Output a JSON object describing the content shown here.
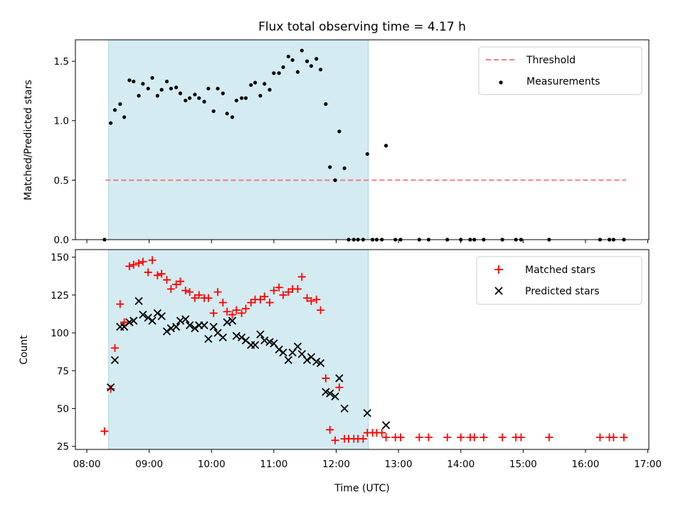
{
  "chart_data": {
    "title": "Flux total observing time = 4.17 h",
    "xlabel": "Time (UTC)",
    "x_ticks": [
      "08:00",
      "09:00",
      "10:00",
      "11:00",
      "12:00",
      "13:00",
      "14:00",
      "15:00",
      "16:00",
      "17:00"
    ],
    "xlim": [
      "07:49",
      "17:01"
    ],
    "observing_window": {
      "start": "08:21",
      "end": "12:31",
      "color": "#d4ebf1"
    },
    "panels": [
      {
        "type": "scatter",
        "ylabel": "Matched/Predicted stars",
        "ylim": [
          0,
          1.68
        ],
        "y_ticks": [
          "0.0",
          "0.5",
          "1.0",
          "1.5"
        ],
        "threshold": {
          "name": "Threshold",
          "value": 0.5,
          "x_start": "08:18",
          "x_end": "16:39",
          "color": "#f08080"
        },
        "legend": [
          "Threshold",
          "Measurements"
        ],
        "legend_position": "top-right",
        "series": [
          {
            "name": "Measurements",
            "color": "#000000",
            "points": [
              [
                "08:17",
                0.0
              ],
              [
                "08:23",
                0.98
              ],
              [
                "08:27",
                1.09
              ],
              [
                "08:32",
                1.14
              ],
              [
                "08:36",
                1.03
              ],
              [
                "08:41",
                1.34
              ],
              [
                "08:45",
                1.33
              ],
              [
                "08:50",
                1.21
              ],
              [
                "08:54",
                1.31
              ],
              [
                "08:59",
                1.27
              ],
              [
                "09:03",
                1.36
              ],
              [
                "09:08",
                1.21
              ],
              [
                "09:12",
                1.26
              ],
              [
                "09:17",
                1.33
              ],
              [
                "09:21",
                1.27
              ],
              [
                "09:26",
                1.28
              ],
              [
                "09:30",
                1.23
              ],
              [
                "09:35",
                1.17
              ],
              [
                "09:39",
                1.19
              ],
              [
                "09:44",
                1.22
              ],
              [
                "09:48",
                1.19
              ],
              [
                "09:53",
                1.16
              ],
              [
                "09:57",
                1.27
              ],
              [
                "10:02",
                1.08
              ],
              [
                "10:06",
                1.27
              ],
              [
                "10:11",
                1.23
              ],
              [
                "10:15",
                1.06
              ],
              [
                "10:20",
                1.03
              ],
              [
                "10:24",
                1.17
              ],
              [
                "10:29",
                1.19
              ],
              [
                "10:33",
                1.19
              ],
              [
                "10:38",
                1.3
              ],
              [
                "10:42",
                1.32
              ],
              [
                "10:47",
                1.21
              ],
              [
                "10:51",
                1.31
              ],
              [
                "10:56",
                1.26
              ],
              [
                "11:00",
                1.4
              ],
              [
                "11:05",
                1.4
              ],
              [
                "11:09",
                1.45
              ],
              [
                "11:14",
                1.54
              ],
              [
                "11:18",
                1.51
              ],
              [
                "11:23",
                1.41
              ],
              [
                "11:27",
                1.59
              ],
              [
                "11:32",
                1.5
              ],
              [
                "11:36",
                1.46
              ],
              [
                "11:41",
                1.52
              ],
              [
                "11:45",
                1.43
              ],
              [
                "11:50",
                1.14
              ],
              [
                "11:54",
                0.61
              ],
              [
                "11:59",
                0.5
              ],
              [
                "12:03",
                0.91
              ],
              [
                "12:08",
                0.6
              ],
              [
                "12:12",
                0.0
              ],
              [
                "12:17",
                0.0
              ],
              [
                "12:21",
                0.0
              ],
              [
                "12:26",
                0.0
              ],
              [
                "12:30",
                0.72
              ],
              [
                "12:35",
                0.0
              ],
              [
                "12:39",
                0.0
              ],
              [
                "12:44",
                0.0
              ],
              [
                "12:48",
                0.79
              ],
              [
                "12:57",
                0.0
              ],
              [
                "13:02",
                0.0
              ],
              [
                "13:20",
                0.0
              ],
              [
                "13:29",
                0.0
              ],
              [
                "13:47",
                0.0
              ],
              [
                "14:00",
                0.0
              ],
              [
                "14:09",
                0.0
              ],
              [
                "14:13",
                0.0
              ],
              [
                "14:22",
                0.0
              ],
              [
                "14:40",
                0.0
              ],
              [
                "14:53",
                0.0
              ],
              [
                "14:58",
                0.0
              ],
              [
                "15:25",
                0.0
              ],
              [
                "16:14",
                0.0
              ],
              [
                "16:23",
                0.0
              ],
              [
                "16:27",
                0.0
              ],
              [
                "16:37",
                0.0
              ]
            ]
          }
        ]
      },
      {
        "type": "scatter",
        "ylabel": "Count",
        "ylim": [
          23,
          155
        ],
        "y_ticks": [
          "25",
          "50",
          "75",
          "100",
          "125",
          "150"
        ],
        "legend": [
          "Matched stars",
          "Predicted stars"
        ],
        "legend_position": "top-right",
        "series": [
          {
            "name": "Matched stars",
            "color": "#ff0000",
            "marker": "+",
            "points": [
              [
                "08:17",
                35
              ],
              [
                "08:23",
                63
              ],
              [
                "08:27",
                90
              ],
              [
                "08:32",
                119
              ],
              [
                "08:36",
                107
              ],
              [
                "08:41",
                144
              ],
              [
                "08:45",
                145
              ],
              [
                "08:50",
                146
              ],
              [
                "08:54",
                147
              ],
              [
                "08:59",
                140
              ],
              [
                "09:03",
                148
              ],
              [
                "09:08",
                138
              ],
              [
                "09:12",
                139
              ],
              [
                "09:17",
                135
              ],
              [
                "09:21",
                129
              ],
              [
                "09:26",
                132
              ],
              [
                "09:30",
                134
              ],
              [
                "09:35",
                128
              ],
              [
                "09:39",
                127
              ],
              [
                "09:44",
                123
              ],
              [
                "09:48",
                125
              ],
              [
                "09:53",
                123
              ],
              [
                "09:57",
                123
              ],
              [
                "10:02",
                113
              ],
              [
                "10:06",
                127
              ],
              [
                "10:11",
                120
              ],
              [
                "10:15",
                114
              ],
              [
                "10:20",
                112
              ],
              [
                "10:24",
                115
              ],
              [
                "10:29",
                113
              ],
              [
                "10:33",
                116
              ],
              [
                "10:38",
                120
              ],
              [
                "10:42",
                122
              ],
              [
                "10:47",
                122
              ],
              [
                "10:51",
                124
              ],
              [
                "10:56",
                120
              ],
              [
                "11:00",
                128
              ],
              [
                "11:05",
                130
              ],
              [
                "11:09",
                125
              ],
              [
                "11:14",
                127
              ],
              [
                "11:18",
                129
              ],
              [
                "11:23",
                129
              ],
              [
                "11:27",
                137
              ],
              [
                "11:32",
                123
              ],
              [
                "11:36",
                121
              ],
              [
                "11:41",
                122
              ],
              [
                "11:45",
                115
              ],
              [
                "11:50",
                70
              ],
              [
                "11:54",
                36
              ],
              [
                "11:59",
                29
              ],
              [
                "12:03",
                64
              ],
              [
                "12:08",
                30
              ],
              [
                "12:12",
                30
              ],
              [
                "12:17",
                30
              ],
              [
                "12:21",
                30
              ],
              [
                "12:26",
                30
              ],
              [
                "12:30",
                34
              ],
              [
                "12:35",
                34
              ],
              [
                "12:39",
                34
              ],
              [
                "12:44",
                34
              ],
              [
                "12:48",
                31
              ],
              [
                "12:57",
                31
              ],
              [
                "13:02",
                31
              ],
              [
                "13:20",
                31
              ],
              [
                "13:29",
                31
              ],
              [
                "13:47",
                31
              ],
              [
                "14:00",
                31
              ],
              [
                "14:09",
                31
              ],
              [
                "14:13",
                31
              ],
              [
                "14:22",
                31
              ],
              [
                "14:40",
                31
              ],
              [
                "14:53",
                31
              ],
              [
                "14:58",
                31
              ],
              [
                "15:25",
                31
              ],
              [
                "16:14",
                31
              ],
              [
                "16:23",
                31
              ],
              [
                "16:27",
                31
              ],
              [
                "16:37",
                31
              ]
            ]
          },
          {
            "name": "Predicted stars",
            "color": "#000000",
            "marker": "x",
            "points": [
              [
                "08:23",
                64
              ],
              [
                "08:27",
                82
              ],
              [
                "08:32",
                104
              ],
              [
                "08:36",
                104
              ],
              [
                "08:41",
                107
              ],
              [
                "08:45",
                108
              ],
              [
                "08:50",
                121
              ],
              [
                "08:54",
                112
              ],
              [
                "08:59",
                110
              ],
              [
                "09:03",
                108
              ],
              [
                "09:08",
                113
              ],
              [
                "09:12",
                111
              ],
              [
                "09:17",
                101
              ],
              [
                "09:21",
                103
              ],
              [
                "09:26",
                104
              ],
              [
                "09:30",
                108
              ],
              [
                "09:35",
                109
              ],
              [
                "09:39",
                105
              ],
              [
                "09:44",
                103
              ],
              [
                "09:48",
                105
              ],
              [
                "09:53",
                105
              ],
              [
                "09:57",
                96
              ],
              [
                "10:02",
                104
              ],
              [
                "10:06",
                100
              ],
              [
                "10:11",
                97
              ],
              [
                "10:15",
                107
              ],
              [
                "10:20",
                108
              ],
              [
                "10:24",
                98
              ],
              [
                "10:29",
                97
              ],
              [
                "10:33",
                95
              ],
              [
                "10:38",
                92
              ],
              [
                "10:42",
                92
              ],
              [
                "10:47",
                99
              ],
              [
                "10:51",
                95
              ],
              [
                "10:56",
                94
              ],
              [
                "11:00",
                93
              ],
              [
                "11:05",
                89
              ],
              [
                "11:09",
                87
              ],
              [
                "11:14",
                82
              ],
              [
                "11:18",
                87
              ],
              [
                "11:23",
                91
              ],
              [
                "11:27",
                86
              ],
              [
                "11:32",
                82
              ],
              [
                "11:36",
                84
              ],
              [
                "11:41",
                81
              ],
              [
                "11:45",
                80
              ],
              [
                "11:50",
                61
              ],
              [
                "11:54",
                60
              ],
              [
                "11:59",
                58
              ],
              [
                "12:03",
                70
              ],
              [
                "12:08",
                50
              ],
              [
                "12:30",
                47
              ],
              [
                "12:48",
                39
              ]
            ]
          }
        ]
      }
    ]
  }
}
